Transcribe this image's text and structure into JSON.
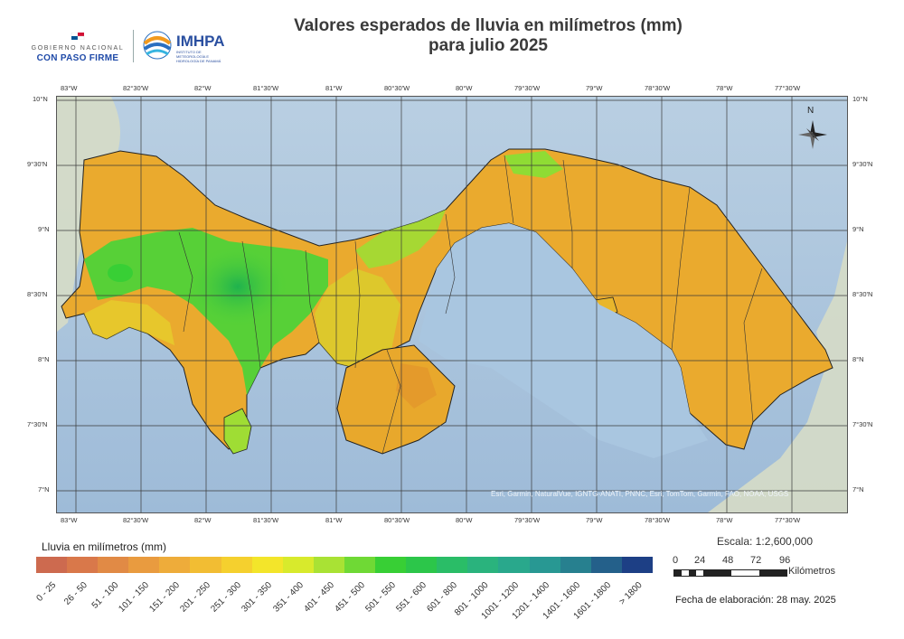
{
  "title": {
    "line1": "Valores esperados de lluvia en milímetros (mm)",
    "line2": "para julio 2025"
  },
  "logos": {
    "government": {
      "line1": "GOBIERNO NACIONAL",
      "line2": "CON PASO FIRME"
    },
    "imhpa": {
      "name": "IMHPA",
      "subtitle": "INSTITUTO DE METEOROLOGÍA E HIDROLOGÍA DE PANAMÁ"
    }
  },
  "map": {
    "longitude_labels": [
      "83°W",
      "82°30'W",
      "82°W",
      "81°30'W",
      "81°W",
      "80°30'W",
      "80°W",
      "79°30'W",
      "79°W",
      "78°30'W",
      "78°W",
      "77°30'W"
    ],
    "latitude_labels": [
      "10°N",
      "9°30'N",
      "9°N",
      "8°30'N",
      "8°N",
      "7°30'N",
      "7°N"
    ],
    "north_arrow": "N",
    "attribution": "Esri, Garmin, NaturalVue, IGNTG-ANATI, PNNC, Esri, TomTom, Garmin, FAO, NOAA, USGS",
    "colors": {
      "ocean": "#a9c6e0",
      "land_bg": "#d7dcc8",
      "high_rain": "#2fc23c",
      "mid_rain": "#e8b62c",
      "low_rain": "#e6a82a"
    }
  },
  "legend": {
    "title": "Lluvia en milímetros (mm)",
    "classes": [
      {
        "label": "0 - 25",
        "color": "#cd6a4f"
      },
      {
        "label": "26 - 50",
        "color": "#d9784a"
      },
      {
        "label": "51 - 100",
        "color": "#e18a45"
      },
      {
        "label": "101 - 150",
        "color": "#e99b3f"
      },
      {
        "label": "151 - 200",
        "color": "#eeac3a"
      },
      {
        "label": "201 - 250",
        "color": "#f2bd33"
      },
      {
        "label": "251 - 300",
        "color": "#f5d02e"
      },
      {
        "label": "301 - 350",
        "color": "#f3e52a"
      },
      {
        "label": "351 - 400",
        "color": "#d8ea2c"
      },
      {
        "label": "401 - 450",
        "color": "#a9e234"
      },
      {
        "label": "451 - 500",
        "color": "#6fd935"
      },
      {
        "label": "501 - 550",
        "color": "#38cf35"
      },
      {
        "label": "551 - 600",
        "color": "#2cc64a"
      },
      {
        "label": "601 - 800",
        "color": "#2abd67"
      },
      {
        "label": "801 - 1000",
        "color": "#2ab37d"
      },
      {
        "label": "1001 - 1200",
        "color": "#29a88c"
      },
      {
        "label": "1201 - 1400",
        "color": "#289893"
      },
      {
        "label": "1401 - 1600",
        "color": "#27808f"
      },
      {
        "label": "1601 - 1800",
        "color": "#24608a"
      },
      {
        "label": "> 1800",
        "color": "#1d3f85"
      }
    ]
  },
  "scale": {
    "text": "Escala: 1:2,600,000",
    "values": [
      "0",
      "24",
      "48",
      "72",
      "96"
    ],
    "unit": "Kilómetros"
  },
  "date": "Fecha de elaboración: 28 may. 2025"
}
